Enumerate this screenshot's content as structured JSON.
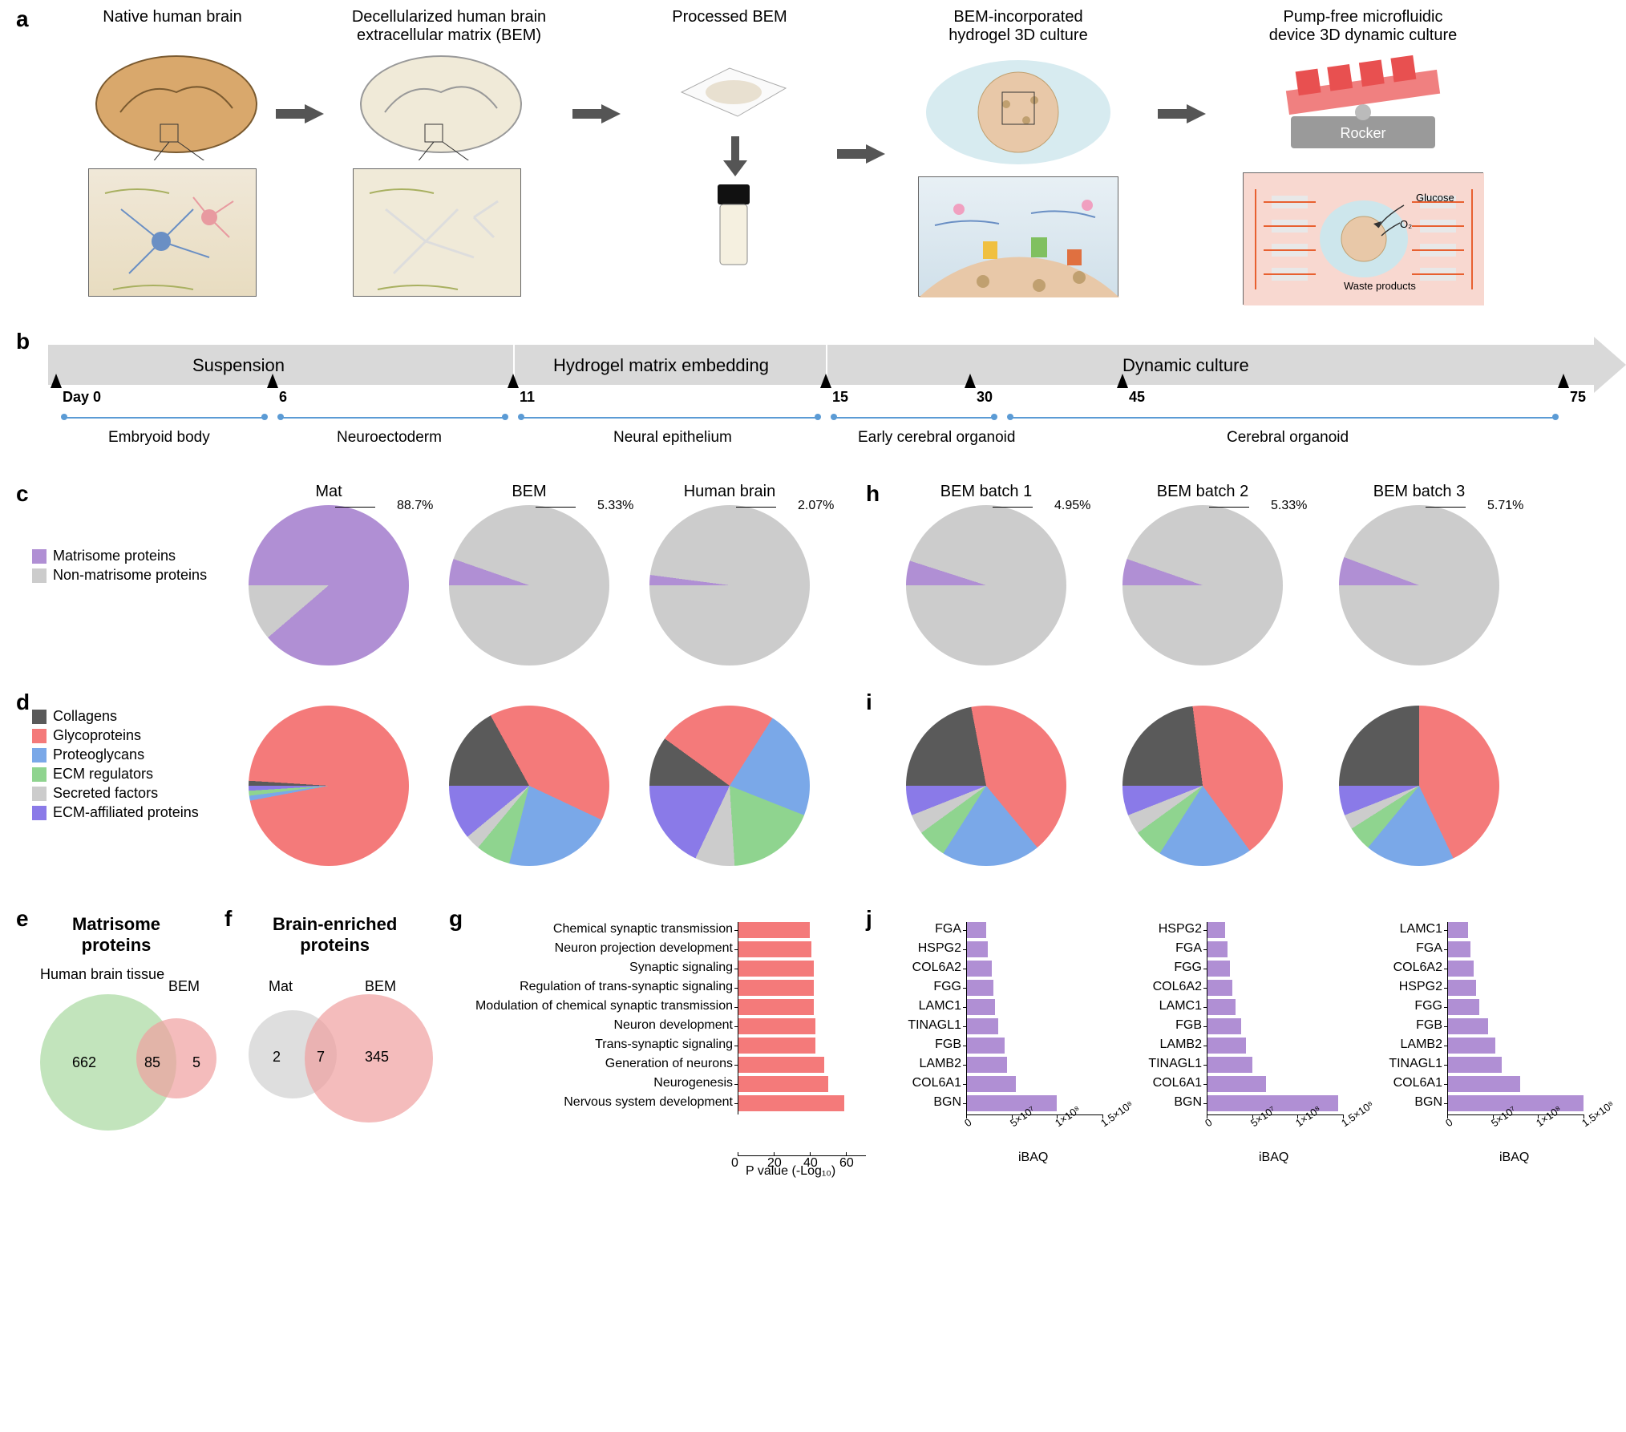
{
  "colors": {
    "matrisome": "#b08fd4",
    "non_matrisome": "#cccccc",
    "collagens": "#5a5a5a",
    "glycoproteins": "#f47a7a",
    "proteoglycans": "#7aa8e8",
    "ecm_regulators": "#8fd48f",
    "secreted_factors": "#cccccc",
    "ecm_affiliated": "#8a7ae8",
    "venn_green": "#a8d8a0",
    "venn_red": "#f0a0a0",
    "venn_grey": "#d0d0d0",
    "bar_red": "#f47a7a",
    "bar_purple": "#b08fd4",
    "timeline_bg": "#d9d9d9",
    "timeline_blue": "#5b9bd5"
  },
  "panel_a": {
    "steps": [
      "Native human brain",
      "Decellularized human brain\nextracellular matrix (BEM)",
      "Processed BEM",
      "BEM-incorporated\nhydrogel 3D culture",
      "Pump-free microfluidic\ndevice 3D dynamic culture"
    ],
    "rocker_label": "Rocker",
    "micro_labels": {
      "glucose": "Glucose",
      "o2": "O₂",
      "waste": "Waste products"
    }
  },
  "panel_b": {
    "phases": [
      "Suspension",
      "Hydrogel matrix embedding",
      "Dynamic culture"
    ],
    "days": [
      "Day 0",
      "6",
      "11",
      "15",
      "30",
      "45",
      "75"
    ],
    "stages": [
      "Embryoid body",
      "Neuroectoderm",
      "Neural epithelium",
      "Early cerebral organoid",
      "Cerebral organoid"
    ]
  },
  "legend_c": {
    "items": [
      "Matrisome proteins",
      "Non-matrisome proteins"
    ],
    "colors": [
      "#b08fd4",
      "#cccccc"
    ]
  },
  "legend_d": {
    "items": [
      "Collagens",
      "Glycoproteins",
      "Proteoglycans",
      "ECM regulators",
      "Secreted factors",
      "ECM-affiliated proteins"
    ],
    "colors": [
      "#5a5a5a",
      "#f47a7a",
      "#7aa8e8",
      "#8fd48f",
      "#cccccc",
      "#8a7ae8"
    ]
  },
  "panel_c": {
    "charts": [
      {
        "title": "Mat",
        "matrisome_pct": 88.7,
        "callout": "88.7%"
      },
      {
        "title": "BEM",
        "matrisome_pct": 5.33,
        "callout": "5.33%"
      },
      {
        "title": "Human brain",
        "matrisome_pct": 2.07,
        "callout": "2.07%"
      }
    ]
  },
  "panel_d": {
    "charts": [
      {
        "slices": [
          1,
          96,
          1,
          1,
          0,
          1
        ]
      },
      {
        "slices": [
          17,
          40,
          22,
          7,
          3,
          11
        ]
      },
      {
        "slices": [
          10,
          24,
          22,
          18,
          8,
          18
        ]
      }
    ]
  },
  "panel_e": {
    "title": "Matrisome\nproteins",
    "set_a": "Human brain tissue",
    "set_b": "BEM",
    "values": {
      "only_a": 662,
      "both": 85,
      "only_b": 5
    }
  },
  "panel_f": {
    "title": "Brain-enriched\nproteins",
    "set_a": "Mat",
    "set_b": "BEM",
    "values": {
      "only_a": 2,
      "both": 7,
      "only_b": 345
    }
  },
  "panel_g": {
    "xlabel": "P value (-Log₁₀)",
    "xlim": [
      0,
      60
    ],
    "xticks": [
      0,
      20,
      40,
      60
    ],
    "categories": [
      "Chemical synaptic transmission",
      "Neuron projection development",
      "Synaptic signaling",
      "Regulation of trans-synaptic signaling",
      "Modulation of chemical synaptic transmission",
      "Neuron development",
      "Trans-synaptic signaling",
      "Generation of neurons",
      "Neurogenesis",
      "Nervous system development"
    ],
    "values": [
      40,
      41,
      42,
      42,
      42,
      43,
      43,
      48,
      50,
      59
    ],
    "bar_color": "#f47a7a"
  },
  "panel_h": {
    "charts": [
      {
        "title": "BEM batch 1",
        "matrisome_pct": 4.95,
        "callout": "4.95%"
      },
      {
        "title": "BEM batch 2",
        "matrisome_pct": 5.33,
        "callout": "5.33%"
      },
      {
        "title": "BEM batch 3",
        "matrisome_pct": 5.71,
        "callout": "5.71%"
      }
    ]
  },
  "panel_i": {
    "charts": [
      {
        "slices": [
          22,
          42,
          20,
          6,
          4,
          6
        ]
      },
      {
        "slices": [
          23,
          42,
          19,
          6,
          4,
          6
        ]
      },
      {
        "slices": [
          25,
          43,
          18,
          5,
          3,
          6
        ]
      }
    ]
  },
  "panel_j": {
    "xlabel": "iBAQ",
    "xlim": [
      0,
      150000000.0
    ],
    "xticks": [
      "0",
      "5×10⁷",
      "1×10⁸",
      "1.5×10⁸"
    ],
    "bar_color": "#b08fd4",
    "charts": [
      {
        "proteins": [
          "FGA",
          "HSPG2",
          "COL6A2",
          "FGG",
          "LAMC1",
          "TINAGL1",
          "FGB",
          "LAMB2",
          "COL6A1",
          "BGN"
        ],
        "values": [
          22000000.0,
          24000000.0,
          28000000.0,
          30000000.0,
          32000000.0,
          35000000.0,
          42000000.0,
          45000000.0,
          55000000.0,
          100000000.0
        ]
      },
      {
        "proteins": [
          "HSPG2",
          "FGA",
          "FGG",
          "COL6A2",
          "LAMC1",
          "FGB",
          "LAMB2",
          "TINAGL1",
          "COL6A1",
          "BGN"
        ],
        "values": [
          20000000.0,
          23000000.0,
          26000000.0,
          28000000.0,
          32000000.0,
          38000000.0,
          43000000.0,
          50000000.0,
          65000000.0,
          145000000.0
        ]
      },
      {
        "proteins": [
          "LAMC1",
          "FGA",
          "COL6A2",
          "HSPG2",
          "FGG",
          "FGB",
          "LAMB2",
          "TINAGL1",
          "COL6A1",
          "BGN"
        ],
        "values": [
          23000000.0,
          26000000.0,
          29000000.0,
          32000000.0,
          35000000.0,
          45000000.0,
          53000000.0,
          60000000.0,
          80000000.0,
          150000000.0
        ]
      }
    ]
  }
}
